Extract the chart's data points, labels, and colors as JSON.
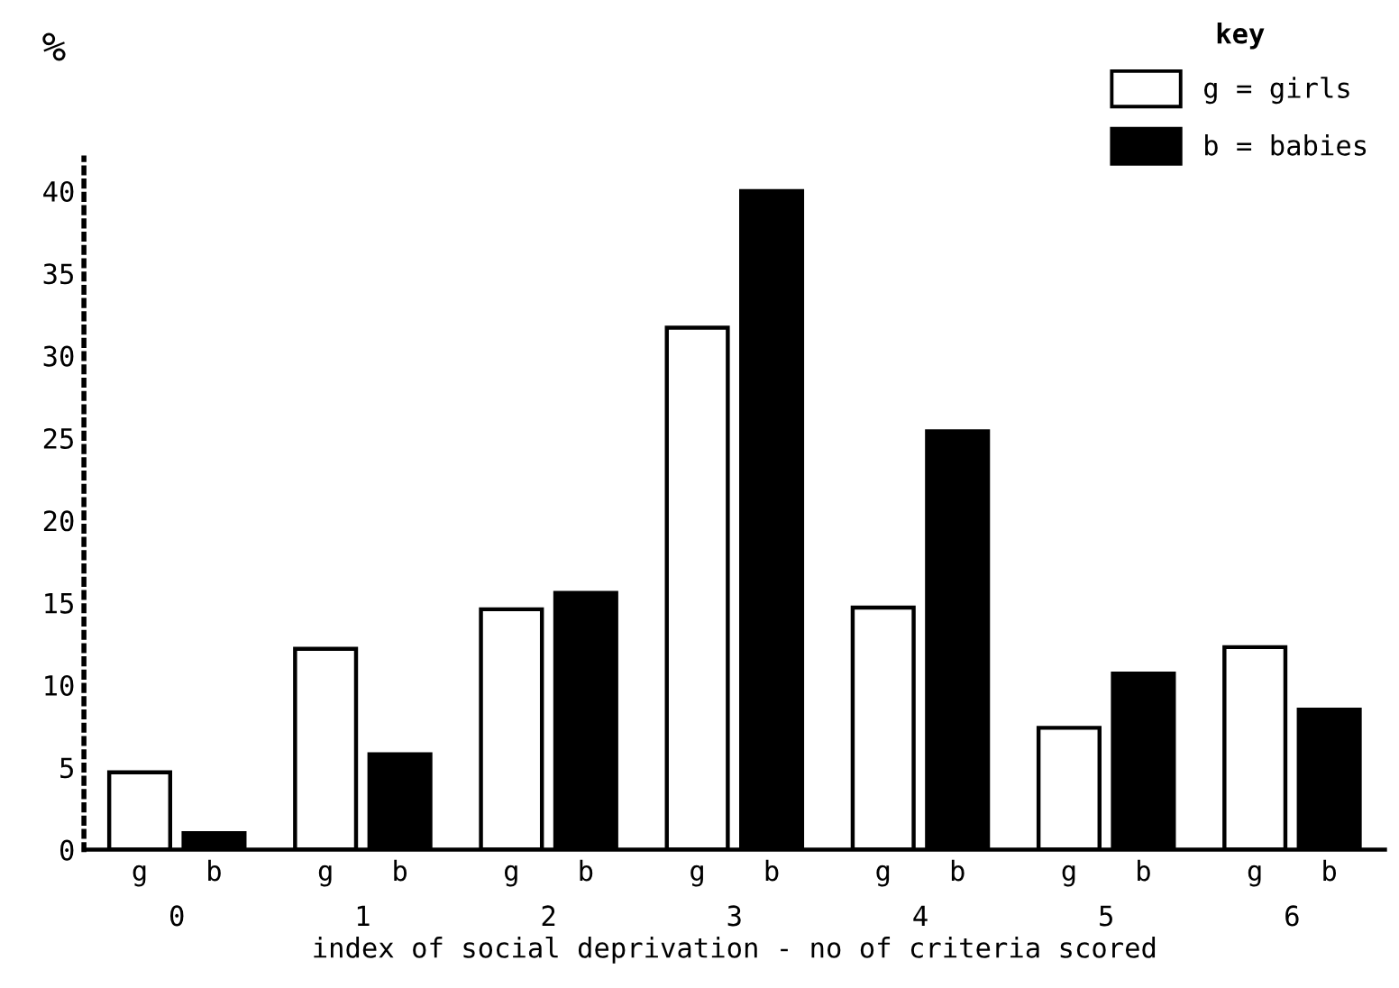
{
  "chart_data": {
    "type": "bar",
    "ylabel": "%",
    "xlabel": "index of social deprivation - no of criteria scored",
    "categories": [
      "0",
      "1",
      "2",
      "3",
      "4",
      "5",
      "6"
    ],
    "series": [
      {
        "name": "g = girls",
        "color": "#ffffff",
        "values": [
          4.7,
          12.2,
          14.6,
          31.7,
          14.7,
          7.4,
          12.3
        ]
      },
      {
        "name": "b = babies",
        "color": "#000000",
        "values": [
          1.0,
          5.8,
          15.6,
          40,
          25.4,
          10.7,
          8.5
        ]
      }
    ],
    "legend_title": "key",
    "legend": "top right",
    "annotations": [
      "g",
      "b",
      "g",
      "b",
      "g",
      "b",
      "g",
      "b",
      "g",
      "b",
      "g",
      "b",
      "g",
      "b"
    ],
    "ylim": [
      0,
      42
    ],
    "yticks": [
      0,
      5,
      10,
      15,
      20,
      25,
      30,
      35,
      40
    ],
    "grid": false
  }
}
